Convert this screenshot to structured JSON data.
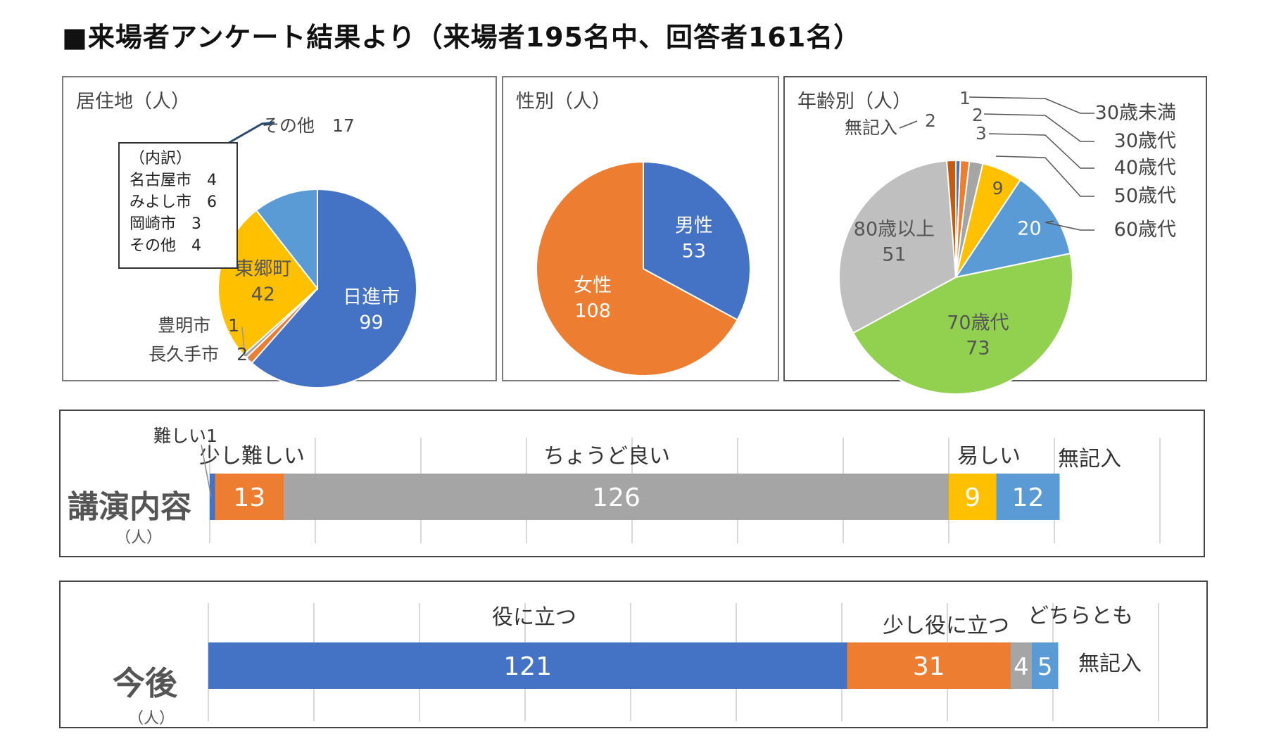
{
  "title": "■来場者アンケート結果より（来場者195名中、回答者161名）",
  "chart_data": [
    {
      "type": "pie",
      "title": "居住地（人）",
      "categories": [
        "日進市",
        "長久手市",
        "豊明市",
        "東郷町",
        "その他"
      ],
      "values": [
        99,
        2,
        1,
        42,
        17
      ],
      "colors": [
        "#4472C4",
        "#ED7D31",
        "#A5A5A5",
        "#FFC000",
        "#5B9BD5"
      ],
      "breakdown": {
        "heading": "（内訳）",
        "items": [
          "名古屋市　4",
          "みよし市　6",
          "岡崎市　3",
          "その他　4"
        ]
      }
    },
    {
      "type": "pie",
      "title": "性別（人）",
      "categories": [
        "男性",
        "女性"
      ],
      "values": [
        53,
        108
      ],
      "colors": [
        "#4472C4",
        "#ED7D31"
      ]
    },
    {
      "type": "pie",
      "title": "年齢別（人）",
      "categories": [
        "30歳未満",
        "30歳代",
        "40歳代",
        "50歳代",
        "60歳代",
        "70歳代",
        "80歳以上",
        "無記入"
      ],
      "values": [
        1,
        2,
        3,
        9,
        20,
        73,
        51,
        2
      ],
      "colors": [
        "#4472C4",
        "#ED7D31",
        "#A5A5A5",
        "#FFC000",
        "#5B9BD5",
        "#92D050",
        "#BFBFBF",
        "#C55A11"
      ]
    },
    {
      "type": "bar",
      "orientation": "horizontal-stacked",
      "title": "講演内容",
      "unit": "（人）",
      "categories": [
        "難しい",
        "少し難しい",
        "ちょうど良い",
        "易しい",
        "無記入"
      ],
      "values": [
        1,
        13,
        126,
        9,
        12
      ],
      "colors": [
        "#4472C4",
        "#ED7D31",
        "#A5A5A5",
        "#FFC000",
        "#5B9BD5"
      ],
      "xlim": [
        0,
        180
      ]
    },
    {
      "type": "bar",
      "orientation": "horizontal-stacked",
      "title": "今後",
      "unit": "（人）",
      "categories": [
        "役に立つ",
        "少し役に立つ",
        "どちらとも",
        "無記入"
      ],
      "values": [
        121,
        31,
        4,
        5
      ],
      "colors": [
        "#4472C4",
        "#ED7D31",
        "#A5A5A5",
        "#5B9BD5"
      ],
      "xlim": [
        0,
        180
      ]
    }
  ]
}
